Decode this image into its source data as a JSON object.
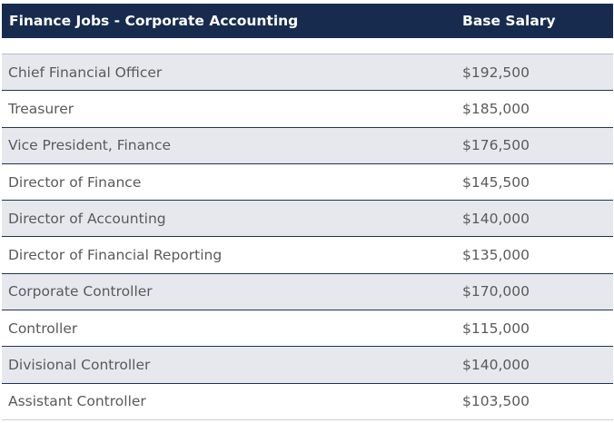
{
  "table": {
    "headers": {
      "job": "Finance Jobs - Corporate Accounting",
      "salary": "Base Salary"
    },
    "rows": [
      {
        "title": "Chief Financial Officer",
        "salary": "$192,500"
      },
      {
        "title": "Treasurer",
        "salary": "$185,000"
      },
      {
        "title": "Vice President, Finance",
        "salary": "$176,500"
      },
      {
        "title": "Director of Finance",
        "salary": "$145,500"
      },
      {
        "title": "Director of Accounting",
        "salary": "$140,000"
      },
      {
        "title": "Director of Financial Reporting",
        "salary": "$135,000"
      },
      {
        "title": "Corporate Controller",
        "salary": "$170,000"
      },
      {
        "title": "Controller",
        "salary": "$115,000"
      },
      {
        "title": "Divisional Controller",
        "salary": "$140,000"
      },
      {
        "title": "Assistant Controller",
        "salary": "$103,500"
      }
    ]
  },
  "colors": {
    "header_bg": "#172b4f",
    "header_text": "#ffffff",
    "stripe_bg": "#e6e8ee",
    "row_text": "#5a5a5a",
    "row_border": "#1e3457"
  }
}
